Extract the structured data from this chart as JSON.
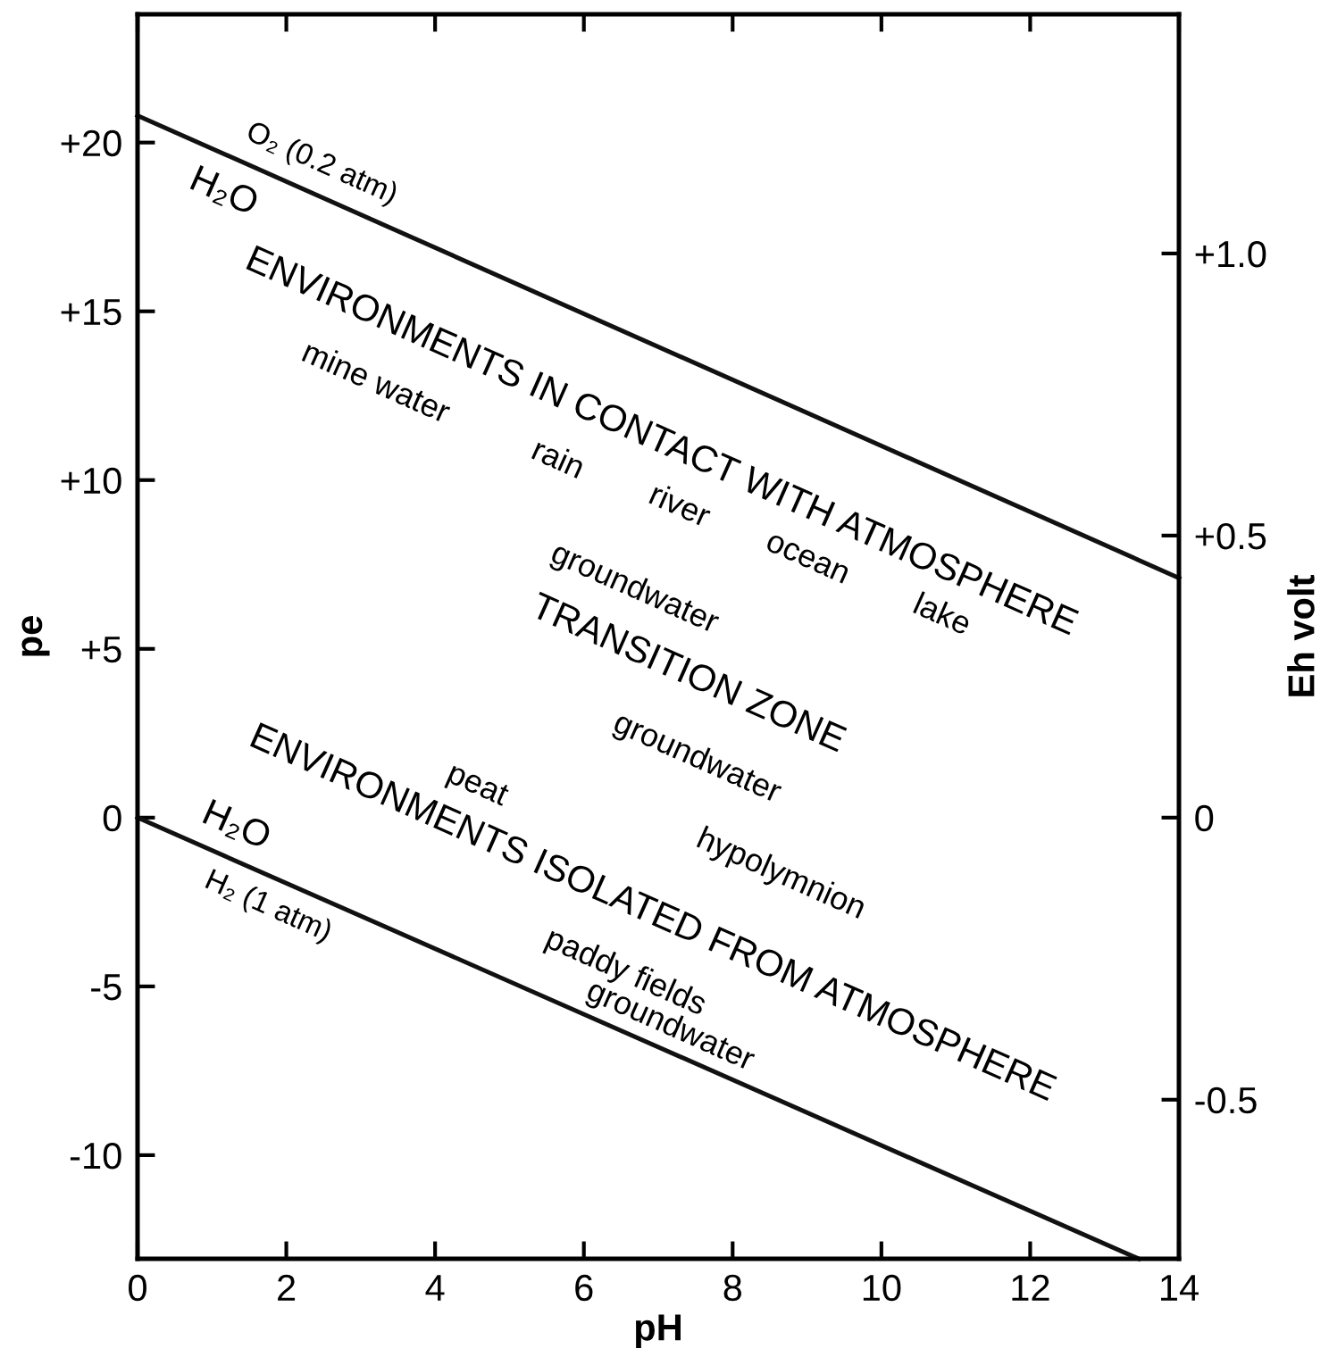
{
  "chart_data": {
    "type": "line",
    "xlabel": "pH",
    "ylabel": "pe",
    "y2label": "Eh volt",
    "series": [
      {
        "color": "#111111",
        "x": [
          0,
          14
        ],
        "values": [
          20.8,
          7.1
        ]
      },
      {
        "color": "#111111",
        "x": [
          0,
          13.46
        ],
        "values": [
          0,
          -13.07
        ]
      }
    ],
    "xlim": [
      0,
      14
    ],
    "xticks": [
      0,
      2,
      4,
      6,
      8,
      10,
      12,
      14
    ],
    "ylim": [
      -13.07,
      23.8
    ],
    "yticks": [
      {
        "value": -10,
        "label": "-10"
      },
      {
        "value": -5,
        "label": "-5"
      },
      0,
      {
        "value": 5,
        "label": "+5"
      },
      {
        "value": 10,
        "label": "+10"
      },
      {
        "value": 15,
        "label": "+15"
      },
      {
        "value": 20,
        "label": "+20"
      }
    ],
    "y2lim": [
      -0.782,
      1.424
    ],
    "y2ticks": [
      {
        "value": -0.5,
        "label": "-0.5"
      },
      0,
      {
        "value": 0.5,
        "label": "+0.5"
      },
      {
        "value": 1.0,
        "label": "+1.0"
      }
    ],
    "grid": false,
    "legend": false,
    "marker": "none",
    "line_style": "solid",
    "annotations": [
      "O₂ (0.2 atm)",
      "H₂O",
      "H₂O",
      "H₂ (1 atm)",
      "ENVIRONMENTS IN CONTACT WITH ATMOSPHERE",
      "mine water",
      "rain",
      "river",
      "ocean",
      "lake",
      "groundwater",
      "TRANSITION ZONE",
      "groundwater",
      "peat",
      "hypolymnion",
      "ENVIRONMENTS ISOLATED FROM ATMOSPHERE",
      "paddy fields",
      "groundwater"
    ]
  }
}
